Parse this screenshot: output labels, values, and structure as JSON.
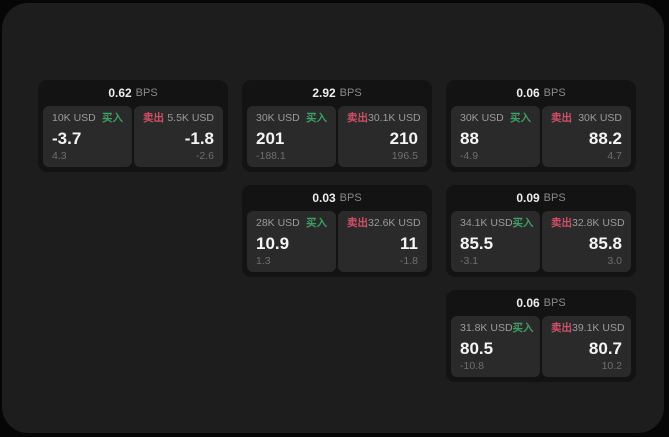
{
  "labels": {
    "bps": "BPS",
    "buy": "买入",
    "sell": "卖出"
  },
  "colors": {
    "buy_green": "#3f9e63",
    "sell_red": "#d04f66",
    "panel_bg": "#1d1d1e",
    "card_bg": "#131313",
    "tile_bg": "#2a2a2b"
  },
  "cards": [
    {
      "row": 1,
      "col": 1,
      "bps": "0.62",
      "buy": {
        "amount": "10K USD",
        "value": "-3.7",
        "delta": "4.3"
      },
      "sell": {
        "amount": "5.5K USD",
        "value": "-1.8",
        "delta": "-2.6"
      }
    },
    {
      "row": 1,
      "col": 2,
      "bps": "2.92",
      "buy": {
        "amount": "30K USD",
        "value": "201",
        "delta": "-188.1"
      },
      "sell": {
        "amount": "30.1K USD",
        "value": "210",
        "delta": "196.5"
      }
    },
    {
      "row": 1,
      "col": 3,
      "bps": "0.06",
      "buy": {
        "amount": "30K USD",
        "value": "88",
        "delta": "-4.9"
      },
      "sell": {
        "amount": "30K USD",
        "value": "88.2",
        "delta": "4.7"
      }
    },
    {
      "row": 2,
      "col": 2,
      "bps": "0.03",
      "buy": {
        "amount": "28K USD",
        "value": "10.9",
        "delta": "1.3"
      },
      "sell": {
        "amount": "32.6K USD",
        "value": "11",
        "delta": "-1.8"
      }
    },
    {
      "row": 2,
      "col": 3,
      "bps": "0.09",
      "buy": {
        "amount": "34.1K USD",
        "value": "85.5",
        "delta": "-3.1"
      },
      "sell": {
        "amount": "32.8K USD",
        "value": "85.8",
        "delta": "3.0"
      }
    },
    {
      "row": 3,
      "col": 3,
      "bps": "0.06",
      "buy": {
        "amount": "31.8K USD",
        "value": "80.5",
        "delta": "-10.8"
      },
      "sell": {
        "amount": "39.1K USD",
        "value": "80.7",
        "delta": "10.2"
      }
    }
  ]
}
